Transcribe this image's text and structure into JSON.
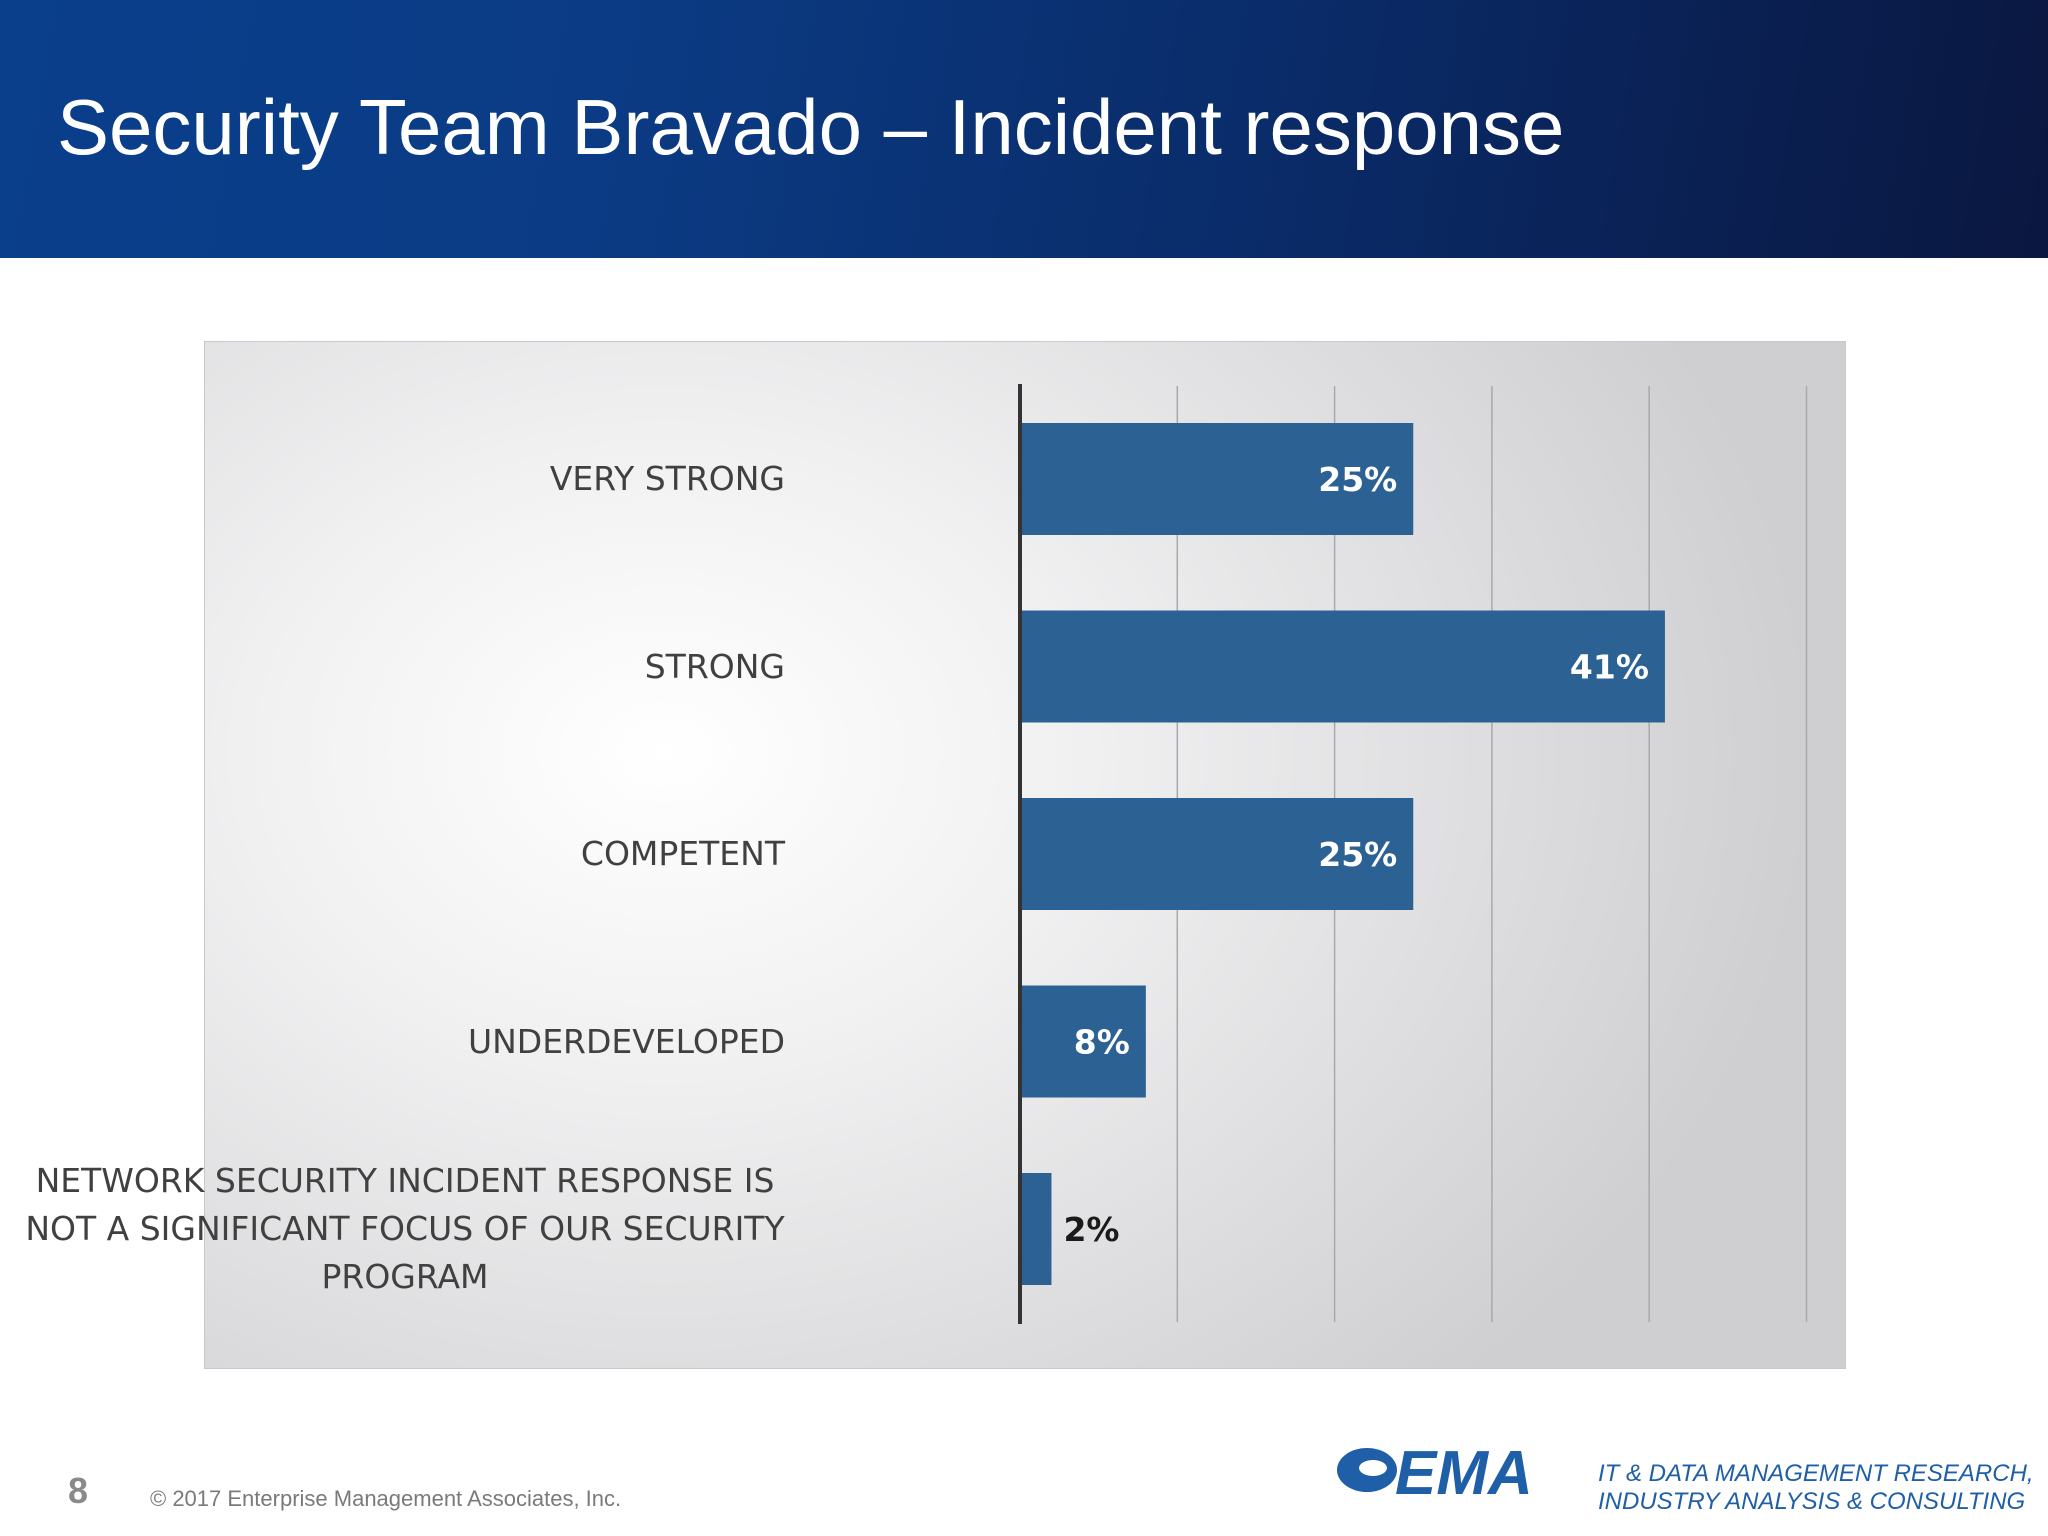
{
  "slide": {
    "title": "Security Team Bravado – Incident response",
    "page_number": "8",
    "copyright": "© 2017 Enterprise Management Associates, Inc.",
    "logo_text": "EMA",
    "tagline_line1": "IT & DATA MANAGEMENT RESEARCH,",
    "tagline_line2": "INDUSTRY ANALYSIS & CONSULTING"
  },
  "colors": {
    "bar": "#2b6193",
    "bar_label_inside": "#ffffff",
    "bar_label_outside": "#1a1a1a",
    "logo_blue": "#1f5fa8"
  },
  "chart_data": {
    "type": "bar",
    "orientation": "horizontal",
    "title": "",
    "xlabel": "",
    "ylabel": "",
    "categories": [
      "VERY STRONG",
      "STRONG",
      "COMPETENT",
      "UNDERDEVELOPED",
      "NETWORK SECURITY INCIDENT RESPONSE IS NOT A SIGNIFICANT FOCUS OF OUR SECURITY PROGRAM"
    ],
    "category_lines": [
      [
        "VERY STRONG"
      ],
      [
        "STRONG"
      ],
      [
        "COMPETENT"
      ],
      [
        "UNDERDEVELOPED"
      ],
      [
        "NETWORK SECURITY INCIDENT RESPONSE IS",
        "NOT A SIGNIFICANT FOCUS OF OUR SECURITY",
        "PROGRAM"
      ]
    ],
    "values": [
      25,
      41,
      25,
      8,
      2
    ],
    "data_labels": [
      "25%",
      "41%",
      "25%",
      "8%",
      "2%"
    ],
    "xlim": [
      0,
      50
    ],
    "grid": true,
    "legend": "none"
  }
}
